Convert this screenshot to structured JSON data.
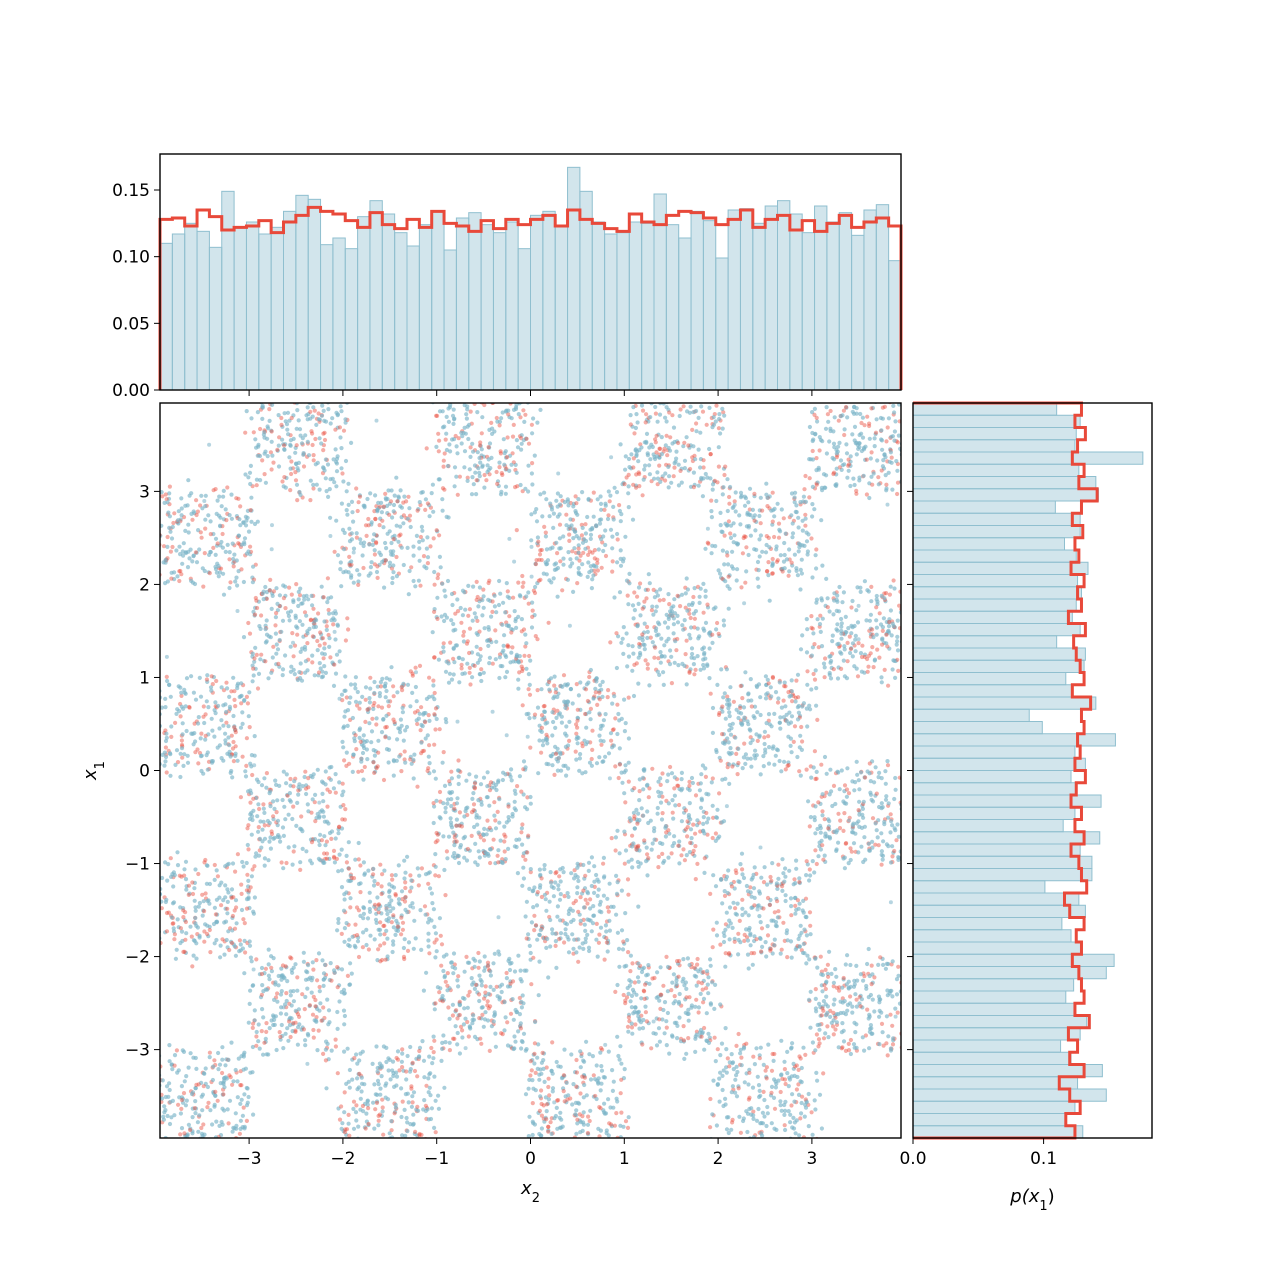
{
  "chart_data": [
    {
      "panel": "top-marginal",
      "type": "histogram",
      "xlim": [
        -3.95,
        3.95
      ],
      "ylim": [
        0.0,
        0.177
      ],
      "yticks": [
        {
          "value": 0.0,
          "label": "0.00"
        },
        {
          "value": 0.05,
          "label": "0.05"
        },
        {
          "value": 0.1,
          "label": "0.10"
        },
        {
          "value": 0.15,
          "label": "0.15"
        }
      ],
      "xticks_values": [
        -3,
        -2,
        -1,
        0,
        1,
        2,
        3
      ],
      "bin_range": [
        -3.95,
        3.95
      ],
      "bar_values": [
        0.11,
        0.117,
        0.125,
        0.119,
        0.107,
        0.149,
        0.122,
        0.126,
        0.117,
        0.122,
        0.134,
        0.146,
        0.143,
        0.109,
        0.114,
        0.106,
        0.13,
        0.142,
        0.132,
        0.118,
        0.108,
        0.124,
        0.134,
        0.105,
        0.129,
        0.133,
        0.124,
        0.118,
        0.126,
        0.106,
        0.131,
        0.134,
        0.123,
        0.167,
        0.149,
        0.126,
        0.117,
        0.118,
        0.126,
        0.125,
        0.147,
        0.124,
        0.114,
        0.134,
        0.127,
        0.099,
        0.135,
        0.136,
        0.125,
        0.138,
        0.142,
        0.132,
        0.118,
        0.138,
        0.126,
        0.133,
        0.116,
        0.135,
        0.139,
        0.097
      ],
      "step_values": [
        0.128,
        0.129,
        0.123,
        0.135,
        0.13,
        0.12,
        0.122,
        0.123,
        0.127,
        0.118,
        0.126,
        0.131,
        0.137,
        0.134,
        0.132,
        0.127,
        0.122,
        0.133,
        0.124,
        0.121,
        0.128,
        0.122,
        0.134,
        0.125,
        0.123,
        0.119,
        0.127,
        0.121,
        0.128,
        0.124,
        0.128,
        0.131,
        0.123,
        0.135,
        0.128,
        0.125,
        0.121,
        0.119,
        0.132,
        0.126,
        0.124,
        0.131,
        0.134,
        0.133,
        0.129,
        0.124,
        0.128,
        0.135,
        0.122,
        0.128,
        0.131,
        0.12,
        0.127,
        0.119,
        0.125,
        0.131,
        0.122,
        0.126,
        0.129,
        0.123
      ],
      "bar_color": "#8fbfcf",
      "step_color": "#e8493a"
    },
    {
      "panel": "joint-scatter",
      "type": "scatter",
      "xlabel": "x",
      "xlabel_sub": "2",
      "ylabel": "x",
      "ylabel_sub": "1",
      "xlim": [
        -3.95,
        3.95
      ],
      "ylim": [
        -3.95,
        3.95
      ],
      "xticks": [
        {
          "value": -3,
          "label": "−3"
        },
        {
          "value": -2,
          "label": "−2"
        },
        {
          "value": -1,
          "label": "−1"
        },
        {
          "value": 0,
          "label": "0"
        },
        {
          "value": 1,
          "label": "1"
        },
        {
          "value": 2,
          "label": "2"
        },
        {
          "value": 3,
          "label": "3"
        }
      ],
      "yticks": [
        {
          "value": -3,
          "label": "−3"
        },
        {
          "value": -2,
          "label": "−2"
        },
        {
          "value": -1,
          "label": "−1"
        },
        {
          "value": 0,
          "label": "0"
        },
        {
          "value": 1,
          "label": "1"
        },
        {
          "value": 2,
          "label": "2"
        },
        {
          "value": 3,
          "label": "3"
        }
      ],
      "pattern": "checkerboard",
      "checker_cell_size": 1.0,
      "filled_squares_rule": "(floor(x2) + floor(x1)) is even",
      "series_colors": [
        "#e8493a",
        "#7ab3c8"
      ]
    },
    {
      "panel": "right-marginal",
      "type": "histogram",
      "orientation": "horizontal",
      "xlabel": "p(x",
      "xlabel_sub": "1",
      "xlabel_close": ")",
      "xlim": [
        0.0,
        0.183
      ],
      "ylim": [
        -3.95,
        3.95
      ],
      "xticks": [
        {
          "value": 0.0,
          "label": "0.0"
        },
        {
          "value": 0.1,
          "label": "0.1"
        }
      ],
      "yticks_values": [
        -3,
        -2,
        -1,
        0,
        1,
        2,
        3
      ],
      "bin_range": [
        -3.95,
        3.95
      ],
      "bar_values": [
        0.13,
        0.117,
        0.124,
        0.148,
        0.126,
        0.145,
        0.121,
        0.113,
        0.128,
        0.133,
        0.124,
        0.117,
        0.123,
        0.148,
        0.154,
        0.129,
        0.121,
        0.114,
        0.132,
        0.127,
        0.101,
        0.137,
        0.137,
        0.128,
        0.143,
        0.115,
        0.124,
        0.144,
        0.125,
        0.121,
        0.132,
        0.124,
        0.155,
        0.099,
        0.089,
        0.14,
        0.122,
        0.117,
        0.131,
        0.132,
        0.11,
        0.128,
        0.122,
        0.125,
        0.129,
        0.126,
        0.134,
        0.125,
        0.116,
        0.128,
        0.128,
        0.109,
        0.142,
        0.14,
        0.127,
        0.176,
        0.124,
        0.125,
        0.128,
        0.11
      ],
      "step_values": [
        0.124,
        0.117,
        0.128,
        0.12,
        0.112,
        0.131,
        0.12,
        0.126,
        0.119,
        0.135,
        0.124,
        0.131,
        0.129,
        0.127,
        0.122,
        0.129,
        0.125,
        0.131,
        0.12,
        0.116,
        0.133,
        0.129,
        0.127,
        0.121,
        0.131,
        0.124,
        0.129,
        0.121,
        0.125,
        0.132,
        0.124,
        0.128,
        0.126,
        0.131,
        0.129,
        0.136,
        0.122,
        0.131,
        0.128,
        0.125,
        0.123,
        0.132,
        0.119,
        0.129,
        0.126,
        0.131,
        0.121,
        0.127,
        0.124,
        0.13,
        0.122,
        0.129,
        0.141,
        0.127,
        0.131,
        0.122,
        0.126,
        0.132,
        0.124,
        0.129
      ],
      "bar_color": "#8fbfcf",
      "step_color": "#e8493a"
    }
  ]
}
